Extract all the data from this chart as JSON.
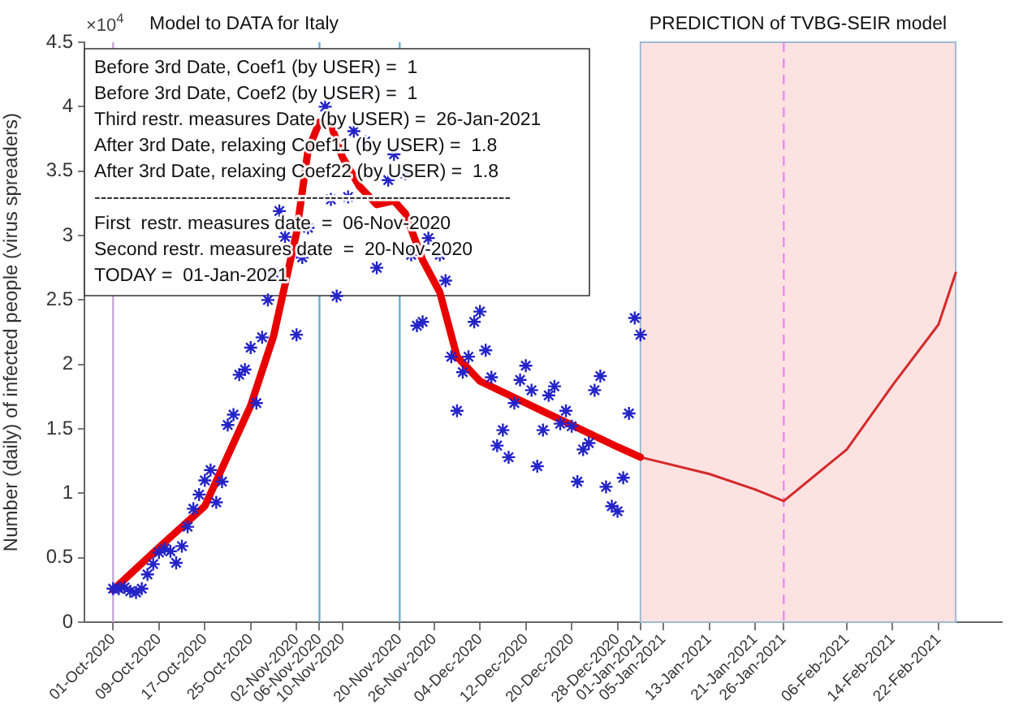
{
  "chart_data": {
    "type": "scatter",
    "title": "Model to DATA for Italy",
    "subtitle": "PREDICTION of TVBG-SEIR model",
    "ylabel": "Number (daily) of infected people (virus spreaders)",
    "xlim": [
      "2020-09-26",
      "2021-03-05"
    ],
    "xticks": [
      {
        "value": "2020-10-01",
        "label": "01-Oct-2020"
      },
      {
        "value": "2020-10-09",
        "label": "09-Oct-2020"
      },
      {
        "value": "2020-10-17",
        "label": "17-Oct-2020"
      },
      {
        "value": "2020-10-25",
        "label": "25-Oct-2020"
      },
      {
        "value": "2020-11-02",
        "label": "02-Nov-2020"
      },
      {
        "value": "2020-11-06",
        "label": "06-Nov-2020"
      },
      {
        "value": "2020-11-10",
        "label": "10-Nov-2020"
      },
      {
        "value": "2020-11-20",
        "label": "20-Nov-2020"
      },
      {
        "value": "2020-11-26",
        "label": "26-Nov-2020"
      },
      {
        "value": "2020-12-04",
        "label": "04-Dec-2020"
      },
      {
        "value": "2020-12-12",
        "label": "12-Dec-2020"
      },
      {
        "value": "2020-12-20",
        "label": "20-Dec-2020"
      },
      {
        "value": "2020-12-28",
        "label": "28-Dec-2020"
      },
      {
        "value": "2021-01-01",
        "label": "01-Jan-2021"
      },
      {
        "value": "2021-01-05",
        "label": "05-Jan-2021"
      },
      {
        "value": "2021-01-13",
        "label": "13-Jan-2021"
      },
      {
        "value": "2021-01-21",
        "label": "21-Jan-2021"
      },
      {
        "value": "2021-01-26",
        "label": "26-Jan-2021"
      },
      {
        "value": "2021-02-06",
        "label": "06-Feb-2021"
      },
      {
        "value": "2021-02-14",
        "label": "14-Feb-2021"
      },
      {
        "value": "2021-02-22",
        "label": "22-Feb-2021"
      }
    ],
    "ylim": [
      0,
      4.5
    ],
    "yticks": [
      0,
      0.5,
      1,
      1.5,
      2,
      2.5,
      3,
      3.5,
      4,
      4.5
    ],
    "grid": false,
    "legend": false,
    "series": [
      {
        "color": "#2323c8",
        "marker": "cross",
        "x": [
          "2020-10-01",
          "2020-10-02",
          "2020-10-03",
          "2020-10-04",
          "2020-10-05",
          "2020-10-06",
          "2020-10-07",
          "2020-10-08",
          "2020-10-09",
          "2020-10-10",
          "2020-10-11",
          "2020-10-12",
          "2020-10-13",
          "2020-10-14",
          "2020-10-15",
          "2020-10-16",
          "2020-10-17",
          "2020-10-18",
          "2020-10-19",
          "2020-10-20",
          "2020-10-21",
          "2020-10-22",
          "2020-10-23",
          "2020-10-24",
          "2020-10-25",
          "2020-10-26",
          "2020-10-27",
          "2020-10-28",
          "2020-10-29",
          "2020-10-30",
          "2020-10-31",
          "2020-11-02",
          "2020-11-03",
          "2020-11-04",
          "2020-11-07",
          "2020-11-08",
          "2020-11-09",
          "2020-11-11",
          "2020-11-12",
          "2020-11-13",
          "2020-11-14",
          "2020-11-16",
          "2020-11-18",
          "2020-11-19",
          "2020-11-21",
          "2020-11-22",
          "2020-11-23",
          "2020-11-24",
          "2020-11-25",
          "2020-11-27",
          "2020-11-28",
          "2020-11-29",
          "2020-11-30",
          "2020-12-01",
          "2020-12-02",
          "2020-12-03",
          "2020-12-04",
          "2020-12-05",
          "2020-12-06",
          "2020-12-07",
          "2020-12-08",
          "2020-12-09",
          "2020-12-10",
          "2020-12-11",
          "2020-12-12",
          "2020-12-13",
          "2020-12-14",
          "2020-12-15",
          "2020-12-16",
          "2020-12-17",
          "2020-12-18",
          "2020-12-19",
          "2020-12-20",
          "2020-12-21",
          "2020-12-22",
          "2020-12-23",
          "2020-12-24",
          "2020-12-25",
          "2020-12-26",
          "2020-12-27",
          "2020-12-28",
          "2020-12-29",
          "2020-12-30",
          "2020-12-31",
          "2021-01-01"
        ],
        "values": [
          0.26,
          0.26,
          0.27,
          0.24,
          0.23,
          0.26,
          0.37,
          0.45,
          0.54,
          0.57,
          0.55,
          0.46,
          0.59,
          0.74,
          0.88,
          0.99,
          1.1,
          1.18,
          0.93,
          1.09,
          1.53,
          1.61,
          1.92,
          1.96,
          2.13,
          1.7,
          2.21,
          2.5,
          2.71,
          3.19,
          2.99,
          2.23,
          2.83,
          3.06,
          4,
          3.28,
          2.53,
          3.3,
          3.81,
          4.11,
          3.73,
          2.75,
          3.43,
          3.63,
          3.48,
          2.85,
          2.3,
          2.33,
          2.98,
          2.85,
          2.65,
          2.06,
          1.64,
          1.94,
          2.06,
          2.33,
          2.41,
          2.11,
          1.9,
          1.37,
          1.49,
          1.28,
          1.7,
          1.88,
          1.99,
          1.8,
          1.21,
          1.49,
          1.76,
          1.83,
          1.54,
          1.64,
          1.52,
          1.09,
          1.34,
          1.39,
          1.8,
          1.91,
          1.05,
          0.9,
          0.86,
          1.12,
          1.62,
          2.36,
          2.23
        ]
      },
      {
        "type": "line",
        "color": "#e80000",
        "marker": "none",
        "line_style": "solid",
        "x": [
          "2020-10-01",
          "2020-10-09",
          "2020-10-17",
          "2020-10-25",
          "2020-10-29",
          "2020-11-02",
          "2020-11-04",
          "2020-11-06",
          "2020-11-08",
          "2020-11-10",
          "2020-11-13",
          "2020-11-16",
          "2020-11-19",
          "2020-11-21",
          "2020-11-24",
          "2020-11-27",
          "2020-11-30",
          "2020-12-04",
          "2020-12-12",
          "2020-12-20",
          "2020-12-28",
          "2021-01-01"
        ],
        "values": [
          0.25,
          0.58,
          0.9,
          1.68,
          2.22,
          3.02,
          3.66,
          3.88,
          3.86,
          3.61,
          3.38,
          3.24,
          3.27,
          3.17,
          2.81,
          2.56,
          2.06,
          1.87,
          1.7,
          1.53,
          1.36,
          1.28
        ]
      },
      {
        "type": "line",
        "color": "#d42a2a",
        "marker": "none",
        "line_style": "solid",
        "x": [
          "2021-01-01",
          "2021-01-13",
          "2021-01-21",
          "2021-01-26",
          "2021-02-06",
          "2021-02-14",
          "2021-02-22",
          "2021-02-25"
        ],
        "values": [
          1.28,
          1.15,
          1.03,
          0.94,
          1.34,
          1.84,
          2.31,
          2.71
        ]
      }
    ],
    "ref_lines": [
      {
        "axis": "x",
        "value": "2020-10-01",
        "color": "#c8a8d8",
        "line_style": "solid"
      },
      {
        "axis": "x",
        "value": "2020-11-06",
        "color": "#6aaed0",
        "line_style": "solid"
      },
      {
        "axis": "x",
        "value": "2020-11-20",
        "color": "#6aaed0",
        "line_style": "solid"
      },
      {
        "axis": "x",
        "value": "2021-01-26",
        "color": "#ee88ee",
        "line_style": "dashed"
      }
    ],
    "bands": [
      {
        "axis": "x",
        "from": "2021-01-01",
        "to": "2021-02-25",
        "color": "#fde2e2"
      }
    ],
    "annotations": [
      "×10$^{4}$",
      "Before 3rd Date, Coef1 (by USER) =  1",
      "Before 3rd Date, Coef2 (by USER) =  1",
      "Third restr. measures Date (by USER) =  26-Jan-2021",
      "After 3rd Date, relaxing Coef11 (by USER) =  1.8",
      "After 3rd Date, relaxing Coef22 (by USER) =  1.8",
      "-------------------------------------------------------------------",
      "First  restr. measures date  =  06-Nov-2020",
      "Second restr. measures date  =  20-Nov-2020",
      "TODAY =  01-Jan-2021"
    ]
  }
}
